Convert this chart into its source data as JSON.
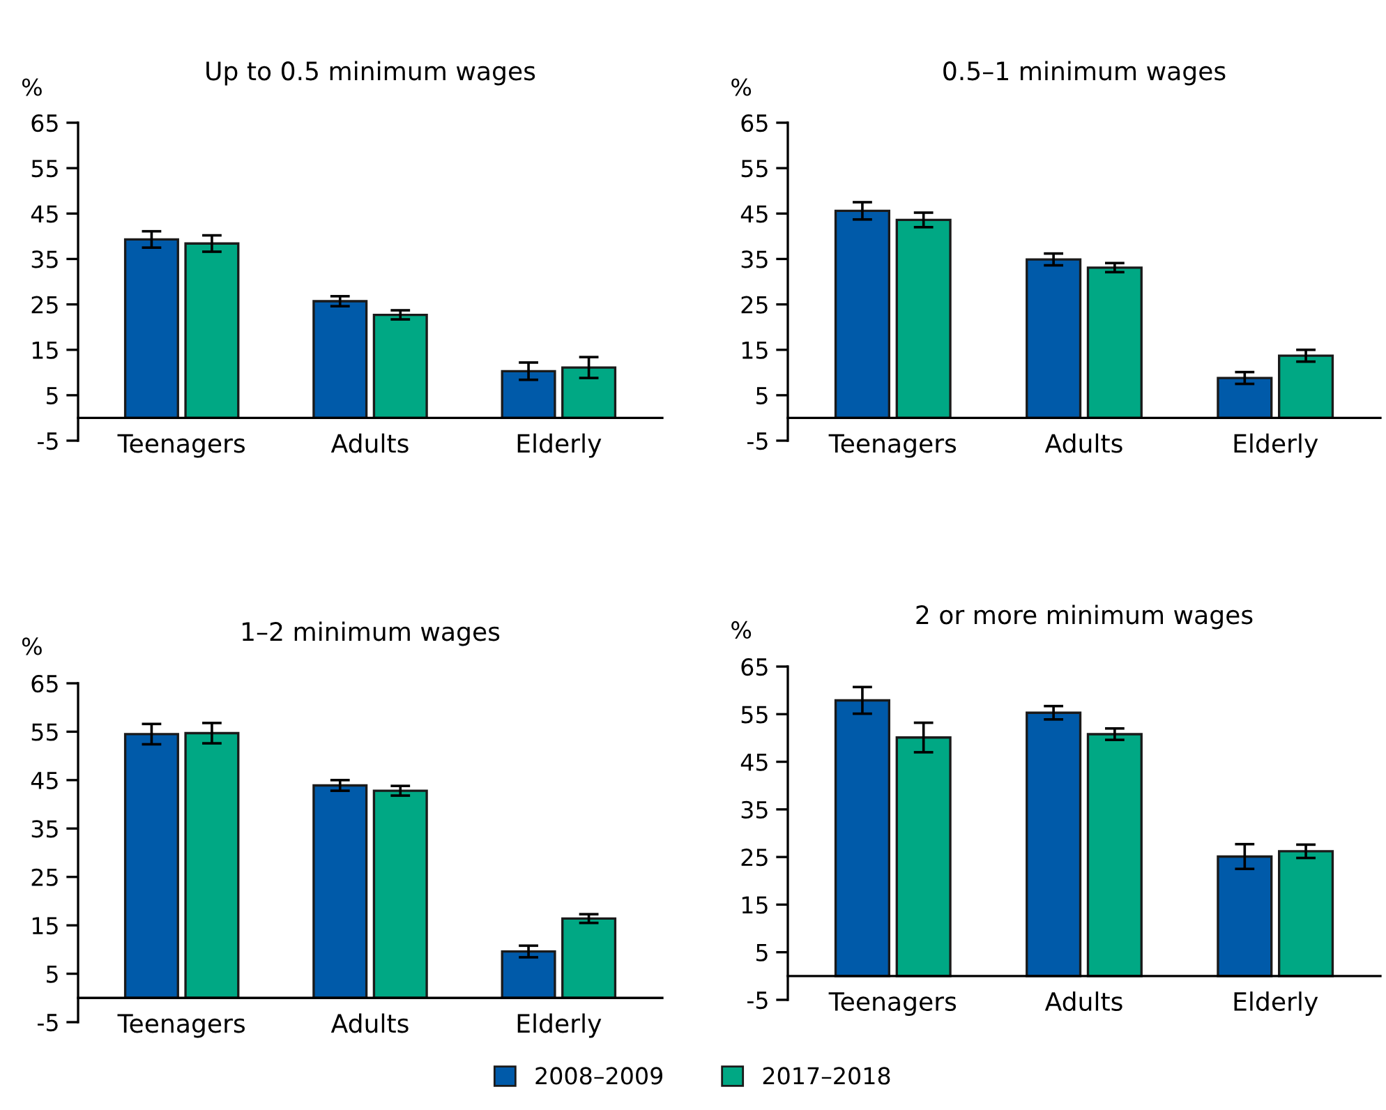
{
  "chart_data": [
    {
      "type": "bar",
      "title": "Up to 0.5 minimum wages",
      "ylabel": "%",
      "categories": [
        "Teenagers",
        "Adults",
        "Elderly"
      ],
      "ylim": [
        -5,
        65
      ],
      "yticks": [
        -5,
        5,
        15,
        25,
        35,
        45,
        55,
        65
      ],
      "grid": false,
      "legend": "bottom",
      "series": [
        {
          "name": "2008–2009",
          "color": "#005aa9",
          "values": [
            39.3,
            25.7,
            10.3
          ],
          "errors": [
            1.8,
            1.1,
            1.9
          ]
        },
        {
          "name": "2017–2018",
          "color": "#00a884",
          "values": [
            38.4,
            22.7,
            11.1
          ],
          "errors": [
            1.8,
            1.0,
            2.3
          ]
        }
      ]
    },
    {
      "type": "bar",
      "title": "0.5–1 minimum wages",
      "ylabel": "%",
      "categories": [
        "Teenagers",
        "Adults",
        "Elderly"
      ],
      "ylim": [
        -5,
        65
      ],
      "yticks": [
        -5,
        5,
        15,
        25,
        35,
        45,
        55,
        65
      ],
      "grid": false,
      "legend": false,
      "series": [
        {
          "color": "#005aa9",
          "values": [
            45.6,
            34.9,
            8.8
          ],
          "errors": [
            1.9,
            1.3,
            1.3
          ]
        },
        {
          "color": "#00a884",
          "values": [
            43.6,
            33.1,
            13.7
          ],
          "errors": [
            1.6,
            1.0,
            1.3
          ]
        }
      ]
    },
    {
      "type": "bar",
      "title": "1–2 minimum wages",
      "ylabel": "%",
      "categories": [
        "Teenagers",
        "Adults",
        "Elderly"
      ],
      "ylim": [
        -5,
        65
      ],
      "yticks": [
        -5,
        5,
        15,
        25,
        35,
        45,
        55,
        65
      ],
      "grid": false,
      "legend": false,
      "series": [
        {
          "color": "#005aa9",
          "values": [
            54.5,
            43.9,
            9.6
          ],
          "errors": [
            2.1,
            1.1,
            1.2
          ]
        },
        {
          "color": "#00a884",
          "values": [
            54.7,
            42.8,
            16.4
          ],
          "errors": [
            2.1,
            1.0,
            0.9
          ]
        }
      ]
    },
    {
      "type": "bar",
      "title": "2 or more minimum wages",
      "ylabel": "%",
      "categories": [
        "Teenagers",
        "Adults",
        "Elderly"
      ],
      "ylim": [
        -5,
        65
      ],
      "yticks": [
        -5,
        5,
        15,
        25,
        35,
        45,
        55,
        65
      ],
      "grid": false,
      "legend": false,
      "series": [
        {
          "color": "#005aa9",
          "values": [
            57.9,
            55.3,
            25.1
          ],
          "errors": [
            2.8,
            1.4,
            2.6
          ]
        },
        {
          "color": "#00a884",
          "values": [
            50.1,
            50.8,
            26.2
          ],
          "errors": [
            3.1,
            1.2,
            1.4
          ]
        }
      ]
    }
  ]
}
